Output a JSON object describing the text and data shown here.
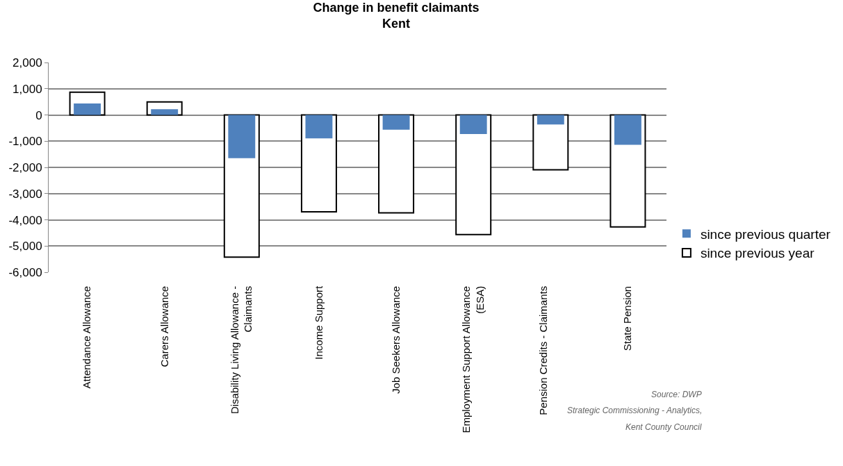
{
  "chart_data": {
    "type": "bar",
    "title": "Change in benefit claimants",
    "subtitle": "Kent",
    "categories": [
      "Attendance Allowance",
      "Carers Allowance",
      "Disability Living Allowance - Claimants",
      "Income Support",
      "Job Seekers Allowance",
      "Employment Support Allowance (ESA)",
      "Pension Credits - Claimants",
      "State Pension"
    ],
    "series": [
      {
        "name": "since previous quarter",
        "color": "#4f81bd",
        "values": [
          440,
          220,
          -1650,
          -890,
          -560,
          -730,
          -360,
          -1140
        ]
      },
      {
        "name": "since previous year",
        "color": "#ffffff",
        "values": [
          870,
          500,
          -5420,
          -3690,
          -3730,
          -4560,
          -2090,
          -4270
        ]
      }
    ],
    "ylim": [
      -6000,
      2000
    ],
    "yticks": [
      {
        "value": -6000,
        "label": "-6,000"
      },
      {
        "value": -5000,
        "label": "-5,000"
      },
      {
        "value": -4000,
        "label": "-4,000"
      },
      {
        "value": -3000,
        "label": "-3,000"
      },
      {
        "value": -2000,
        "label": "-2,000"
      },
      {
        "value": -1000,
        "label": "-1,000"
      },
      0,
      {
        "value": 1000,
        "label": "1,000"
      },
      {
        "value": 2000,
        "label": "2,000"
      }
    ],
    "grid": "y",
    "legend": "right",
    "annotations": [
      "Source: DWP",
      "Strategic Commissioning - Analytics,",
      "Kent County Council"
    ]
  }
}
